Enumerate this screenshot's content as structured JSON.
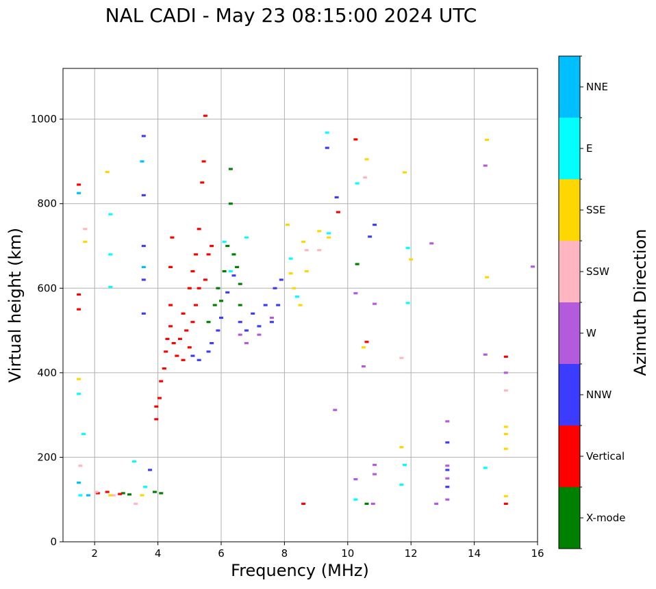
{
  "chart_data": {
    "type": "scatter",
    "title": "NAL CADI - May 23 08:15:00 2024 UTC",
    "xlabel": "Frequency (MHz)",
    "ylabel": "Virtual height (km)",
    "xlim": [
      1,
      16
    ],
    "ylim": [
      0,
      1120
    ],
    "xticks": [
      2,
      4,
      6,
      8,
      10,
      12,
      14,
      16
    ],
    "yticks": [
      0,
      200,
      400,
      600,
      800,
      1000
    ],
    "grid": true,
    "colorbar": {
      "label": "Azimuth Direction",
      "categories": [
        {
          "name": "X-mode",
          "color": "#008000"
        },
        {
          "name": "Vertical",
          "color": "#ff0000"
        },
        {
          "name": "NNW",
          "color": "#3c3cff"
        },
        {
          "name": "W",
          "color": "#b45adc"
        },
        {
          "name": "SSW",
          "color": "#ffb6c1"
        },
        {
          "name": "SSE",
          "color": "#ffd700"
        },
        {
          "name": "E",
          "color": "#00ffff"
        },
        {
          "name": "NNE",
          "color": "#00bfff"
        }
      ]
    },
    "series": [
      {
        "name": "X-mode",
        "points": [
          [
            2.9,
            115
          ],
          [
            3.1,
            112
          ],
          [
            3.9,
            118
          ],
          [
            4.1,
            115
          ],
          [
            5.6,
            520
          ],
          [
            5.8,
            560
          ],
          [
            5.9,
            600
          ],
          [
            6.0,
            570
          ],
          [
            6.1,
            640
          ],
          [
            6.3,
            800
          ],
          [
            6.3,
            882
          ],
          [
            6.4,
            680
          ],
          [
            6.5,
            650
          ],
          [
            6.6,
            610
          ],
          [
            6.2,
            700
          ],
          [
            6.6,
            560
          ],
          [
            10.3,
            657
          ],
          [
            10.6,
            90
          ]
        ]
      },
      {
        "name": "Vertical",
        "points": [
          [
            1.5,
            845
          ],
          [
            1.5,
            585
          ],
          [
            1.5,
            550
          ],
          [
            2.1,
            115
          ],
          [
            2.4,
            118
          ],
          [
            2.8,
            113
          ],
          [
            3.95,
            290
          ],
          [
            3.95,
            320
          ],
          [
            4.05,
            340
          ],
          [
            4.1,
            380
          ],
          [
            4.2,
            410
          ],
          [
            4.25,
            450
          ],
          [
            4.3,
            480
          ],
          [
            4.4,
            510
          ],
          [
            4.4,
            560
          ],
          [
            4.4,
            650
          ],
          [
            4.45,
            720
          ],
          [
            4.5,
            470
          ],
          [
            4.6,
            440
          ],
          [
            4.7,
            480
          ],
          [
            4.8,
            430
          ],
          [
            4.8,
            540
          ],
          [
            4.9,
            500
          ],
          [
            5.0,
            460
          ],
          [
            5.0,
            600
          ],
          [
            5.1,
            520
          ],
          [
            5.1,
            640
          ],
          [
            5.2,
            560
          ],
          [
            5.2,
            680
          ],
          [
            5.3,
            600
          ],
          [
            5.3,
            740
          ],
          [
            5.4,
            850
          ],
          [
            5.45,
            900
          ],
          [
            5.5,
            1008
          ],
          [
            5.5,
            620
          ],
          [
            5.6,
            680
          ],
          [
            5.7,
            700
          ],
          [
            8.6,
            90
          ],
          [
            10.25,
            952
          ],
          [
            9.7,
            780
          ],
          [
            10.6,
            473
          ],
          [
            15.0,
            438
          ],
          [
            15.0,
            90
          ]
        ]
      },
      {
        "name": "NNW",
        "points": [
          [
            3.55,
            960
          ],
          [
            3.55,
            820
          ],
          [
            3.55,
            700
          ],
          [
            3.55,
            620
          ],
          [
            3.55,
            540
          ],
          [
            3.75,
            170
          ],
          [
            5.1,
            440
          ],
          [
            5.3,
            430
          ],
          [
            5.6,
            450
          ],
          [
            5.7,
            470
          ],
          [
            5.9,
            500
          ],
          [
            6.0,
            530
          ],
          [
            6.2,
            590
          ],
          [
            6.4,
            630
          ],
          [
            6.6,
            520
          ],
          [
            6.8,
            500
          ],
          [
            7.0,
            540
          ],
          [
            7.2,
            510
          ],
          [
            7.4,
            560
          ],
          [
            7.6,
            520
          ],
          [
            7.7,
            600
          ],
          [
            7.8,
            560
          ],
          [
            7.9,
            620
          ],
          [
            9.35,
            932
          ],
          [
            9.65,
            815
          ],
          [
            10.7,
            722
          ],
          [
            10.85,
            750
          ],
          [
            13.15,
            235
          ],
          [
            13.15,
            170
          ],
          [
            13.15,
            130
          ]
        ]
      },
      {
        "name": "W",
        "points": [
          [
            6.6,
            490
          ],
          [
            6.8,
            470
          ],
          [
            7.2,
            490
          ],
          [
            7.6,
            530
          ],
          [
            9.6,
            312
          ],
          [
            10.25,
            588
          ],
          [
            10.25,
            148
          ],
          [
            10.5,
            415
          ],
          [
            10.85,
            563
          ],
          [
            10.85,
            182
          ],
          [
            10.85,
            160
          ],
          [
            10.8,
            90
          ],
          [
            12.65,
            706
          ],
          [
            12.8,
            90
          ],
          [
            13.15,
            285
          ],
          [
            13.15,
            180
          ],
          [
            13.15,
            150
          ],
          [
            13.15,
            100
          ],
          [
            14.35,
            890
          ],
          [
            14.35,
            443
          ],
          [
            15.0,
            400
          ],
          [
            15.85,
            651
          ]
        ]
      },
      {
        "name": "SSW",
        "points": [
          [
            1.55,
            180
          ],
          [
            1.7,
            740
          ],
          [
            2.05,
            118
          ],
          [
            2.6,
            110
          ],
          [
            3.3,
            90
          ],
          [
            8.7,
            690
          ],
          [
            9.1,
            690
          ],
          [
            10.55,
            862
          ],
          [
            11.7,
            435
          ],
          [
            15.0,
            358
          ]
        ]
      },
      {
        "name": "SSE",
        "points": [
          [
            1.5,
            385
          ],
          [
            1.7,
            710
          ],
          [
            2.4,
            875
          ],
          [
            2.5,
            110
          ],
          [
            3.5,
            110
          ],
          [
            8.1,
            750
          ],
          [
            8.2,
            635
          ],
          [
            8.3,
            600
          ],
          [
            8.5,
            560
          ],
          [
            8.6,
            710
          ],
          [
            8.7,
            640
          ],
          [
            9.1,
            735
          ],
          [
            9.4,
            720
          ],
          [
            10.5,
            460
          ],
          [
            10.6,
            905
          ],
          [
            11.8,
            874
          ],
          [
            11.7,
            224
          ],
          [
            12.0,
            668
          ],
          [
            14.4,
            951
          ],
          [
            14.4,
            626
          ],
          [
            15.0,
            272
          ],
          [
            15.0,
            255
          ],
          [
            15.0,
            220
          ],
          [
            15.0,
            108
          ]
        ]
      },
      {
        "name": "E",
        "points": [
          [
            1.5,
            350
          ],
          [
            1.55,
            110
          ],
          [
            1.65,
            255
          ],
          [
            2.5,
            775
          ],
          [
            2.5,
            680
          ],
          [
            2.5,
            603
          ],
          [
            3.25,
            190
          ],
          [
            3.6,
            130
          ],
          [
            6.1,
            710
          ],
          [
            6.3,
            640
          ],
          [
            6.8,
            720
          ],
          [
            8.2,
            670
          ],
          [
            8.4,
            580
          ],
          [
            9.35,
            968
          ],
          [
            9.4,
            730
          ],
          [
            10.3,
            848
          ],
          [
            10.25,
            100
          ],
          [
            11.9,
            695
          ],
          [
            11.9,
            565
          ],
          [
            11.8,
            182
          ],
          [
            11.7,
            135
          ],
          [
            14.35,
            175
          ]
        ]
      },
      {
        "name": "NNE",
        "points": [
          [
            1.5,
            825
          ],
          [
            1.5,
            140
          ],
          [
            1.8,
            110
          ],
          [
            3.5,
            900
          ],
          [
            3.55,
            650
          ]
        ]
      }
    ]
  }
}
